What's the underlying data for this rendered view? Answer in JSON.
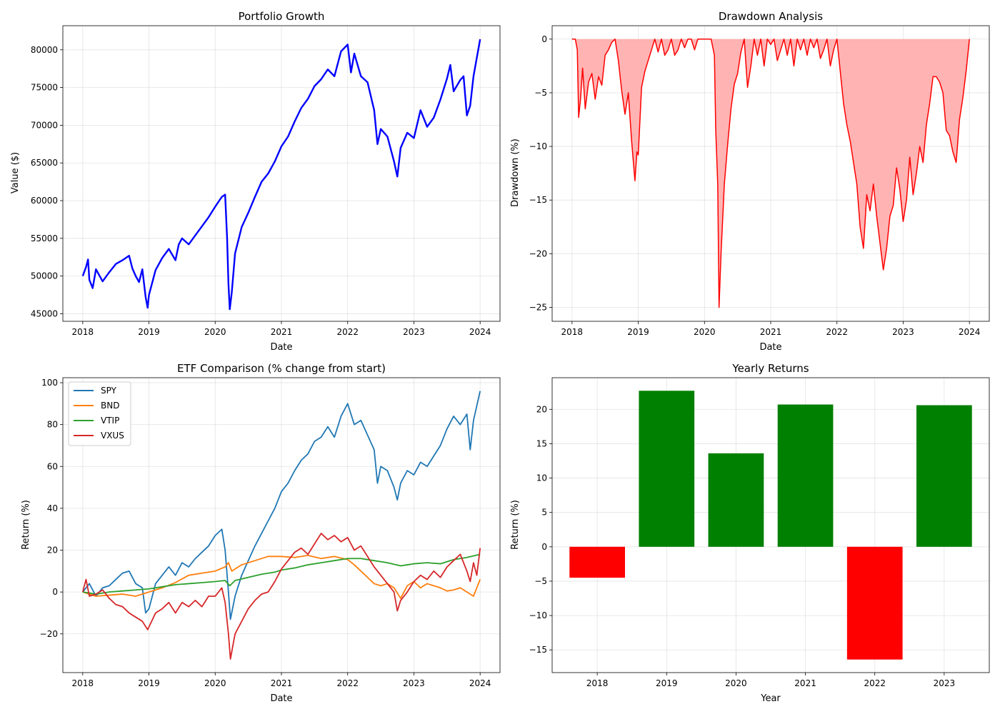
{
  "colors": {
    "portfolio_line": "#0000ff",
    "drawdown_line": "#ff0000",
    "drawdown_fill": "#ffb3b3",
    "positive_bar": "#008000",
    "negative_bar": "#ff0000",
    "SPY": "#1f77b4",
    "BND": "#ff7f0e",
    "VTIP": "#2ca02c",
    "VXUS": "#d62728"
  },
  "chart_data": [
    {
      "id": "portfolio",
      "type": "line",
      "title": "Portfolio Growth",
      "xlabel": "Date",
      "ylabel": "Value ($)",
      "xlim": [
        2017.7,
        2024.3
      ],
      "ylim": [
        44000,
        83200
      ],
      "xticks": [
        2018,
        2019,
        2020,
        2021,
        2022,
        2023,
        2024
      ],
      "xtick_labels": [
        "2018",
        "2019",
        "2020",
        "2021",
        "2022",
        "2023",
        "2024"
      ],
      "yticks": [
        45000,
        50000,
        55000,
        60000,
        65000,
        70000,
        75000,
        80000
      ],
      "ytick_labels": [
        "45000",
        "50000",
        "55000",
        "60000",
        "65000",
        "70000",
        "75000",
        "80000"
      ],
      "grid": true,
      "series": [
        {
          "color_key": "portfolio_line",
          "x": [
            2018.0,
            2018.05,
            2018.08,
            2018.1,
            2018.15,
            2018.2,
            2018.3,
            2018.4,
            2018.5,
            2018.6,
            2018.7,
            2018.75,
            2018.8,
            2018.85,
            2018.9,
            2018.95,
            2018.98,
            2019.0,
            2019.1,
            2019.2,
            2019.3,
            2019.4,
            2019.45,
            2019.5,
            2019.6,
            2019.7,
            2019.8,
            2019.9,
            2020.0,
            2020.1,
            2020.15,
            2020.18,
            2020.2,
            2020.22,
            2020.25,
            2020.3,
            2020.4,
            2020.5,
            2020.6,
            2020.7,
            2020.8,
            2020.9,
            2021.0,
            2021.1,
            2021.2,
            2021.3,
            2021.4,
            2021.5,
            2021.6,
            2021.7,
            2021.8,
            2021.9,
            2022.0,
            2022.05,
            2022.1,
            2022.2,
            2022.3,
            2022.4,
            2022.45,
            2022.5,
            2022.6,
            2022.7,
            2022.75,
            2022.8,
            2022.9,
            2023.0,
            2023.1,
            2023.2,
            2023.3,
            2023.4,
            2023.5,
            2023.55,
            2023.6,
            2023.7,
            2023.75,
            2023.8,
            2023.85,
            2023.9,
            2024.0
          ],
          "y": [
            50000,
            51200,
            52200,
            49500,
            48400,
            50900,
            49300,
            50500,
            51600,
            52100,
            52700,
            51000,
            50000,
            49200,
            50900,
            47200,
            45800,
            47500,
            50800,
            52400,
            53600,
            52100,
            54200,
            55000,
            54200,
            55400,
            56600,
            57800,
            59200,
            60500,
            60800,
            55000,
            49000,
            45600,
            47800,
            53000,
            56500,
            58400,
            60500,
            62500,
            63600,
            65200,
            67200,
            68500,
            70500,
            72300,
            73500,
            75200,
            76100,
            77400,
            76500,
            79800,
            80700,
            77000,
            79500,
            76500,
            75700,
            72000,
            67500,
            69500,
            68500,
            65200,
            63200,
            67000,
            69000,
            68300,
            72000,
            69800,
            71000,
            73400,
            76200,
            78000,
            74500,
            76000,
            76500,
            71300,
            72600,
            76500,
            81400
          ]
        }
      ]
    },
    {
      "id": "drawdown",
      "type": "area",
      "title": "Drawdown Analysis",
      "xlabel": "Date",
      "ylabel": "Drawdown (%)",
      "xlim": [
        2017.7,
        2024.3
      ],
      "ylim": [
        -26.3,
        1.25
      ],
      "xticks": [
        2018,
        2019,
        2020,
        2021,
        2022,
        2023,
        2024
      ],
      "xtick_labels": [
        "2018",
        "2019",
        "2020",
        "2021",
        "2022",
        "2023",
        "2024"
      ],
      "yticks": [
        -25,
        -20,
        -15,
        -10,
        -5,
        0
      ],
      "ytick_labels": [
        "−25",
        "−20",
        "−15",
        "−10",
        "−5",
        "0"
      ],
      "grid": true,
      "series": [
        {
          "color_key": "drawdown_line",
          "fill_key": "drawdown_fill",
          "x": [
            2018.0,
            2018.05,
            2018.08,
            2018.1,
            2018.13,
            2018.16,
            2018.2,
            2018.25,
            2018.3,
            2018.35,
            2018.4,
            2018.45,
            2018.5,
            2018.55,
            2018.6,
            2018.65,
            2018.7,
            2018.75,
            2018.8,
            2018.85,
            2018.9,
            2018.95,
            2018.98,
            2019.0,
            2019.05,
            2019.1,
            2019.15,
            2019.2,
            2019.25,
            2019.3,
            2019.35,
            2019.4,
            2019.45,
            2019.5,
            2019.55,
            2019.6,
            2019.65,
            2019.7,
            2019.75,
            2019.8,
            2019.85,
            2019.9,
            2019.95,
            2020.0,
            2020.05,
            2020.1,
            2020.15,
            2020.17,
            2020.2,
            2020.22,
            2020.25,
            2020.3,
            2020.35,
            2020.4,
            2020.45,
            2020.5,
            2020.55,
            2020.6,
            2020.65,
            2020.7,
            2020.75,
            2020.8,
            2020.85,
            2020.9,
            2020.95,
            2021.0,
            2021.05,
            2021.1,
            2021.15,
            2021.2,
            2021.25,
            2021.3,
            2021.35,
            2021.4,
            2021.45,
            2021.5,
            2021.55,
            2021.6,
            2021.65,
            2021.7,
            2021.75,
            2021.8,
            2021.85,
            2021.9,
            2021.95,
            2022.0,
            2022.05,
            2022.1,
            2022.15,
            2022.2,
            2022.25,
            2022.3,
            2022.35,
            2022.4,
            2022.45,
            2022.5,
            2022.55,
            2022.6,
            2022.65,
            2022.7,
            2022.75,
            2022.8,
            2022.85,
            2022.9,
            2022.95,
            2023.0,
            2023.05,
            2023.1,
            2023.15,
            2023.2,
            2023.25,
            2023.3,
            2023.35,
            2023.4,
            2023.45,
            2023.5,
            2023.55,
            2023.6,
            2023.65,
            2023.7,
            2023.75,
            2023.8,
            2023.85,
            2023.9,
            2023.95,
            2024.0
          ],
          "y": [
            0,
            0,
            -1.0,
            -7.3,
            -5.5,
            -2.7,
            -6.5,
            -4.0,
            -3.2,
            -5.6,
            -3.5,
            -4.3,
            -1.5,
            -1.0,
            -0.3,
            0,
            -2.0,
            -4.8,
            -7.0,
            -5.0,
            -9.5,
            -13.2,
            -10.5,
            -10.8,
            -4.5,
            -3.0,
            -2.0,
            -1.0,
            0,
            -1.2,
            0,
            -1.5,
            -1.0,
            0,
            -1.5,
            -1.0,
            0,
            -0.8,
            0,
            0,
            -1.0,
            0,
            0,
            0,
            0,
            0,
            -1.5,
            -8.5,
            -13.5,
            -25.0,
            -20.0,
            -13.5,
            -9.8,
            -6.5,
            -4.2,
            -3.2,
            -1.2,
            0,
            -4.5,
            -2.5,
            0,
            -1.5,
            0,
            -2.5,
            0,
            -0.5,
            0,
            -2.0,
            -1.0,
            0,
            -1.5,
            0,
            -2.5,
            0,
            -1.0,
            0,
            -1.5,
            0,
            -0.8,
            0,
            -1.8,
            -1.0,
            0,
            -2.5,
            -1.0,
            0,
            -3.0,
            -6.0,
            -8.0,
            -9.5,
            -11.5,
            -13.5,
            -17.5,
            -19.5,
            -14.5,
            -16.0,
            -13.5,
            -16.5,
            -19.0,
            -21.5,
            -19.5,
            -16.5,
            -15.5,
            -12.0,
            -14.0,
            -17.0,
            -15.0,
            -11.0,
            -14.5,
            -12.5,
            -10.0,
            -11.5,
            -8.0,
            -6.0,
            -3.5,
            -3.5,
            -4.0,
            -5.0,
            -8.5,
            -9.0,
            -10.5,
            -11.5,
            -7.5,
            -5.5,
            -3.0,
            0
          ]
        }
      ]
    },
    {
      "id": "etf",
      "type": "line",
      "title": "ETF Comparison (% change from start)",
      "xlabel": "Date",
      "ylabel": "Return (%)",
      "xlim": [
        2017.7,
        2024.3
      ],
      "ylim": [
        -38.5,
        102.4
      ],
      "xticks": [
        2018,
        2019,
        2020,
        2021,
        2022,
        2023,
        2024
      ],
      "xtick_labels": [
        "2018",
        "2019",
        "2020",
        "2021",
        "2022",
        "2023",
        "2024"
      ],
      "yticks": [
        -20,
        0,
        20,
        40,
        60,
        80,
        100
      ],
      "ytick_labels": [
        "−20",
        "0",
        "20",
        "40",
        "60",
        "80",
        "100"
      ],
      "grid": true,
      "legend": "top-left",
      "series": [
        {
          "name": "SPY",
          "color_key": "SPY",
          "x": [
            2018.0,
            2018.1,
            2018.2,
            2018.3,
            2018.4,
            2018.5,
            2018.6,
            2018.7,
            2018.8,
            2018.9,
            2018.95,
            2019.0,
            2019.1,
            2019.2,
            2019.3,
            2019.4,
            2019.5,
            2019.6,
            2019.7,
            2019.8,
            2019.9,
            2020.0,
            2020.1,
            2020.15,
            2020.2,
            2020.23,
            2020.3,
            2020.4,
            2020.5,
            2020.6,
            2020.7,
            2020.8,
            2020.9,
            2021.0,
            2021.1,
            2021.2,
            2021.3,
            2021.4,
            2021.5,
            2021.6,
            2021.7,
            2021.8,
            2021.9,
            2022.0,
            2022.1,
            2022.2,
            2022.3,
            2022.4,
            2022.45,
            2022.5,
            2022.6,
            2022.7,
            2022.75,
            2022.8,
            2022.9,
            2023.0,
            2023.1,
            2023.2,
            2023.3,
            2023.4,
            2023.5,
            2023.6,
            2023.7,
            2023.8,
            2023.85,
            2023.9,
            2024.0
          ],
          "y": [
            0,
            4,
            -2,
            2,
            3,
            6,
            9,
            10,
            4,
            2,
            -10,
            -8,
            4,
            8,
            12,
            8,
            14,
            12,
            16,
            19,
            22,
            27,
            30,
            20,
            0,
            -13,
            -2,
            8,
            15,
            22,
            28,
            34,
            40,
            48,
            52,
            58,
            63,
            66,
            72,
            74,
            79,
            74,
            84,
            90,
            80,
            82,
            75,
            68,
            52,
            60,
            58,
            50,
            44,
            52,
            58,
            56,
            62,
            60,
            65,
            70,
            78,
            84,
            80,
            85,
            68,
            82,
            96
          ]
        },
        {
          "name": "BND",
          "color_key": "BND",
          "x": [
            2018.0,
            2018.2,
            2018.4,
            2018.6,
            2018.8,
            2019.0,
            2019.2,
            2019.4,
            2019.6,
            2019.8,
            2020.0,
            2020.15,
            2020.2,
            2020.25,
            2020.4,
            2020.6,
            2020.8,
            2021.0,
            2021.2,
            2021.4,
            2021.6,
            2021.8,
            2022.0,
            2022.1,
            2022.2,
            2022.3,
            2022.4,
            2022.5,
            2022.6,
            2022.7,
            2022.8,
            2022.85,
            2022.9,
            2023.0,
            2023.1,
            2023.2,
            2023.3,
            2023.4,
            2023.5,
            2023.6,
            2023.7,
            2023.8,
            2023.9,
            2024.0
          ],
          "y": [
            0,
            -2,
            -1.5,
            -1,
            -2,
            0,
            2,
            4.5,
            8,
            9,
            10,
            12,
            14,
            10,
            13,
            15,
            17,
            17,
            16.5,
            17.5,
            16,
            17,
            15.5,
            13,
            10,
            7,
            4,
            3,
            4,
            2,
            -3,
            0,
            3,
            5,
            2,
            4,
            3,
            2,
            0.5,
            1,
            2,
            0,
            -2,
            6
          ]
        },
        {
          "name": "VTIP",
          "color_key": "VTIP",
          "x": [
            2018.0,
            2018.2,
            2018.4,
            2018.6,
            2018.8,
            2019.0,
            2019.2,
            2019.4,
            2019.6,
            2019.8,
            2020.0,
            2020.15,
            2020.22,
            2020.3,
            2020.5,
            2020.7,
            2020.9,
            2021.0,
            2021.2,
            2021.4,
            2021.6,
            2021.8,
            2022.0,
            2022.2,
            2022.4,
            2022.6,
            2022.8,
            2022.9,
            2023.0,
            2023.2,
            2023.4,
            2023.6,
            2023.8,
            2024.0
          ],
          "y": [
            0,
            -1,
            0,
            0.5,
            1,
            1.5,
            2.5,
            3.5,
            4,
            4.5,
            5,
            5.5,
            3,
            5.5,
            7,
            8.5,
            9.5,
            10.5,
            11.5,
            13,
            14,
            15,
            16,
            16,
            15,
            14,
            12.5,
            13,
            13.5,
            14,
            13.5,
            15.5,
            16.5,
            18
          ]
        },
        {
          "name": "VXUS",
          "color_key": "VXUS",
          "x": [
            2018.0,
            2018.05,
            2018.1,
            2018.2,
            2018.3,
            2018.4,
            2018.5,
            2018.6,
            2018.7,
            2018.8,
            2018.9,
            2018.98,
            2019.1,
            2019.2,
            2019.3,
            2019.4,
            2019.5,
            2019.6,
            2019.7,
            2019.8,
            2019.9,
            2020.0,
            2020.1,
            2020.15,
            2020.2,
            2020.23,
            2020.3,
            2020.4,
            2020.5,
            2020.6,
            2020.7,
            2020.8,
            2020.9,
            2021.0,
            2021.1,
            2021.2,
            2021.3,
            2021.4,
            2021.5,
            2021.6,
            2021.7,
            2021.8,
            2021.9,
            2022.0,
            2022.1,
            2022.2,
            2022.3,
            2022.4,
            2022.5,
            2022.6,
            2022.7,
            2022.75,
            2022.8,
            2022.9,
            2023.0,
            2023.1,
            2023.2,
            2023.3,
            2023.4,
            2023.5,
            2023.6,
            2023.7,
            2023.8,
            2023.85,
            2023.9,
            2023.95,
            2024.0
          ],
          "y": [
            0,
            6,
            -2,
            -1,
            1,
            -3,
            -6,
            -7,
            -10,
            -12,
            -14,
            -18,
            -10,
            -8,
            -5,
            -10,
            -5,
            -7,
            -4,
            -7,
            -2,
            -2,
            2,
            -5,
            -20,
            -32,
            -20,
            -14,
            -8,
            -4,
            -1,
            0,
            5,
            11,
            15,
            19,
            21,
            18,
            23,
            28,
            25,
            27,
            24,
            26,
            20,
            22,
            17,
            12,
            8,
            4,
            0,
            -9,
            -4,
            0,
            5,
            8,
            6,
            10,
            7,
            12,
            15,
            18,
            10,
            5,
            14,
            8,
            21
          ]
        }
      ]
    },
    {
      "id": "yearly",
      "type": "bar",
      "title": "Yearly Returns",
      "xlabel": "Year",
      "ylabel": "Return (%)",
      "categories": [
        "2018",
        "2019",
        "2020",
        "2021",
        "2022",
        "2023"
      ],
      "values": [
        -4.5,
        22.7,
        13.6,
        20.7,
        -16.4,
        20.6
      ],
      "ylim": [
        -18.3,
        24.6
      ],
      "yticks": [
        -15,
        -10,
        -5,
        0,
        5,
        10,
        15,
        20
      ],
      "ytick_labels": [
        "−15",
        "−10",
        "−5",
        "0",
        "5",
        "10",
        "15",
        "20"
      ],
      "grid": true
    }
  ]
}
